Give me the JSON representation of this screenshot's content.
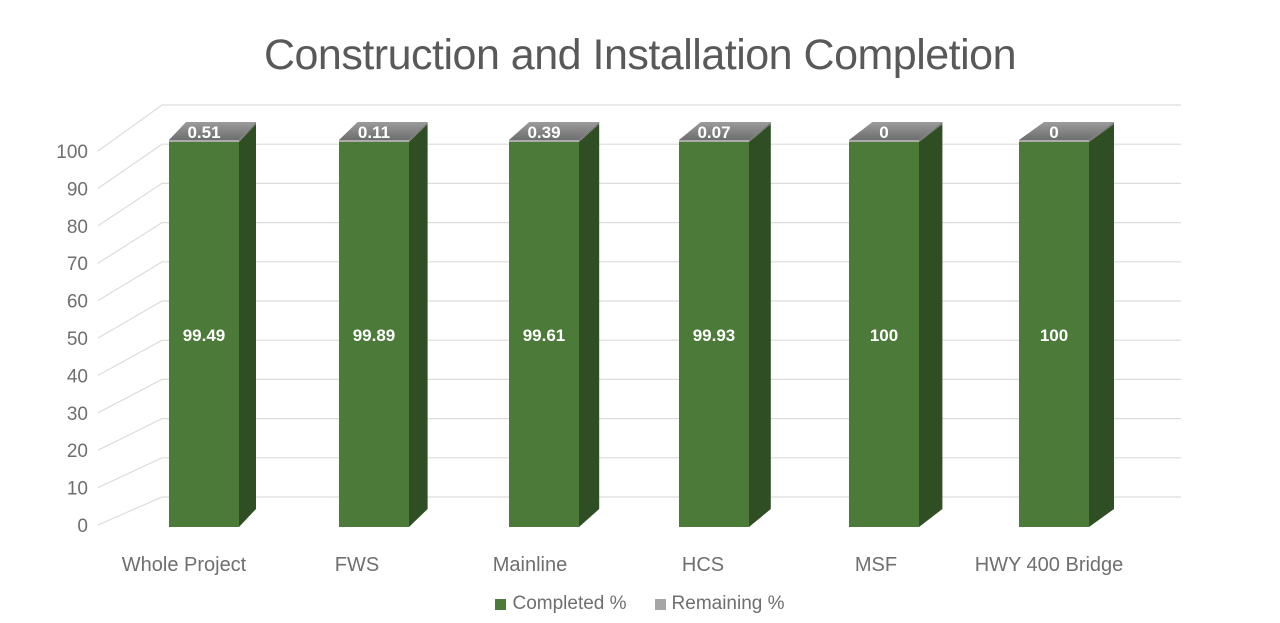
{
  "chart_data": {
    "type": "bar",
    "subtype": "3d-stacked-column",
    "title": "Construction and Installation Completion",
    "categories": [
      "Whole Project",
      "FWS",
      "Mainline",
      "HCS",
      "MSF",
      "HWY 400 Bridge"
    ],
    "series": [
      {
        "name": "Completed %",
        "color": "#4b7a39",
        "values": [
          99.49,
          99.89,
          99.61,
          99.93,
          100,
          100
        ]
      },
      {
        "name": "Remaining %",
        "color": "#a6a6a6",
        "values": [
          0.51,
          0.11,
          0.39,
          0.07,
          0,
          0
        ]
      }
    ],
    "xlabel": "",
    "ylabel": "",
    "ylim": [
      0,
      100
    ],
    "ytick_step": 10,
    "ytick_labels": [
      "0",
      "10",
      "20",
      "30",
      "40",
      "50",
      "60",
      "70",
      "80",
      "90",
      "100"
    ],
    "grid": true,
    "legend_position": "bottom",
    "data_labels": true,
    "colors": {
      "bar_front": "#4b7a39",
      "bar_side": "#2f4e23",
      "cap_back_light": "#9b9b9b",
      "cap_front_dark": "#6e6e6e",
      "cap_strip": "#ababab",
      "cap_side": "#787878",
      "gridline": "#dcdcdc",
      "axis_text": "#6f6f6f",
      "title_text": "#595959",
      "data_label_text": "#ffffff",
      "background": "#ffffff"
    }
  }
}
